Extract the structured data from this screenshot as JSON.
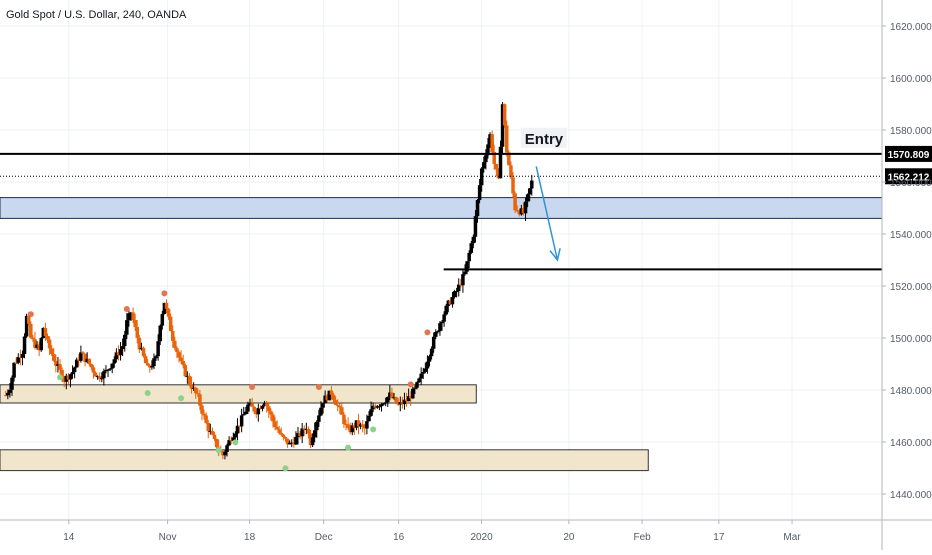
{
  "header": {
    "title": "Gold Spot / U.S. Dollar, 240, OANDA"
  },
  "colors": {
    "grid": "#eef1f5",
    "candle_up": "#000000",
    "candle_down": "#e8630a",
    "support_fill": "#f1e5cc",
    "support_stroke": "#333333",
    "zone_fill": "#c9d7ef",
    "zone_stroke": "#1c2d52",
    "arrow": "#2f95d0",
    "dot_high": "#e2774f",
    "dot_low": "#8fd18a",
    "axis_text": "#555b66"
  },
  "chart_data": {
    "type": "candlestick",
    "title": "Gold Spot / U.S. Dollar, 240, OANDA",
    "symbol": "XAUUSD",
    "timeframe": "240",
    "source": "OANDA",
    "ylim": [
      1430,
      1630
    ],
    "y_ticks": [
      1440,
      1460,
      1480,
      1500,
      1520,
      1540,
      1560,
      1580,
      1600,
      1620
    ],
    "y_tick_labels": [
      "1440.000",
      "1460.000",
      "1480.000",
      "1500.000",
      "1520.000",
      "1540.000",
      "1560.000",
      "1580.000",
      "1600.000",
      "1620.000"
    ],
    "x_ticks": [
      {
        "label": "14",
        "x": 0.078
      },
      {
        "label": "Nov",
        "x": 0.19
      },
      {
        "label": "18",
        "x": 0.283
      },
      {
        "label": "Dec",
        "x": 0.367
      },
      {
        "label": "16",
        "x": 0.452
      },
      {
        "label": "2020",
        "x": 0.546
      },
      {
        "label": "20",
        "x": 0.645
      },
      {
        "label": "Feb",
        "x": 0.728
      },
      {
        "label": "17",
        "x": 0.815
      },
      {
        "label": "Mar",
        "x": 0.898
      }
    ],
    "path": [
      [
        0,
        1478
      ],
      [
        0.6,
        1482
      ],
      [
        1,
        1490
      ],
      [
        2,
        1495
      ],
      [
        2.5,
        1508
      ],
      [
        3,
        1500
      ],
      [
        4,
        1495
      ],
      [
        4.5,
        1504
      ],
      [
        5,
        1498
      ],
      [
        6,
        1490
      ],
      [
        7,
        1484
      ],
      [
        8,
        1487
      ],
      [
        9,
        1494
      ],
      [
        10,
        1490
      ],
      [
        11,
        1485
      ],
      [
        12,
        1487
      ],
      [
        13,
        1492
      ],
      [
        14,
        1497
      ],
      [
        14.5,
        1506
      ],
      [
        15,
        1510
      ],
      [
        16,
        1497
      ],
      [
        17,
        1488
      ],
      [
        18,
        1492
      ],
      [
        18.5,
        1506
      ],
      [
        19,
        1514
      ],
      [
        20,
        1500
      ],
      [
        21,
        1490
      ],
      [
        22,
        1483
      ],
      [
        23,
        1477
      ],
      [
        24,
        1467
      ],
      [
        25,
        1460
      ],
      [
        26,
        1455
      ],
      [
        27,
        1462
      ],
      [
        28,
        1467
      ],
      [
        29,
        1474
      ],
      [
        30,
        1472
      ],
      [
        31,
        1476
      ],
      [
        32,
        1468
      ],
      [
        33,
        1462
      ],
      [
        34,
        1459
      ],
      [
        35,
        1462
      ],
      [
        36,
        1466
      ],
      [
        36.5,
        1460
      ],
      [
        37,
        1466
      ],
      [
        38,
        1476
      ],
      [
        39,
        1479
      ],
      [
        40,
        1472
      ],
      [
        41,
        1464
      ],
      [
        42,
        1467
      ],
      [
        43,
        1465
      ],
      [
        44,
        1474
      ],
      [
        45,
        1475
      ],
      [
        46,
        1478
      ],
      [
        47,
        1474
      ],
      [
        48,
        1476
      ],
      [
        49,
        1480
      ],
      [
        50,
        1487
      ],
      [
        51,
        1497
      ],
      [
        52,
        1506
      ],
      [
        53,
        1513
      ],
      [
        54,
        1518
      ],
      [
        55,
        1525
      ],
      [
        56,
        1540
      ],
      [
        57,
        1565
      ],
      [
        58,
        1578
      ],
      [
        58.5,
        1567
      ],
      [
        59,
        1560
      ],
      [
        59.5,
        1590
      ],
      [
        60,
        1572
      ],
      [
        61,
        1550
      ],
      [
        62,
        1548
      ],
      [
        63,
        1560
      ]
    ],
    "levels": [
      {
        "type": "resistance",
        "value": 1570.8,
        "label": "1570.809",
        "span": "full"
      },
      {
        "type": "current",
        "value": 1562.2,
        "label": "1562.212",
        "span": "full"
      },
      {
        "type": "target",
        "value": 1526.4,
        "label": "",
        "from": 0.503
      }
    ],
    "zones": [
      {
        "name": "supply-demand-zone",
        "top": 1554,
        "bottom": 1546,
        "from": 0,
        "to": 1,
        "style": "blue"
      },
      {
        "name": "support-zone-upper",
        "top": 1482,
        "bottom": 1475,
        "from": 0,
        "to": 0.54,
        "style": "beige"
      },
      {
        "name": "support-zone-lower",
        "top": 1457,
        "bottom": 1449,
        "from": 0,
        "to": 0.735,
        "style": "beige"
      }
    ],
    "annotations": [
      {
        "type": "label",
        "text": "Entry",
        "x": 0.595,
        "y": 1577
      },
      {
        "type": "arrow",
        "from": [
          0.608,
          1566
        ],
        "to": [
          0.632,
          1530
        ]
      }
    ],
    "signal_dots_high": [
      [
        3,
        1508
      ],
      [
        14.5,
        1510
      ],
      [
        19,
        1516
      ],
      [
        29.5,
        1480
      ],
      [
        37.5,
        1480
      ],
      [
        48.5,
        1481
      ],
      [
        50.5,
        1501
      ]
    ],
    "signal_dots_low": [
      [
        6.5,
        1486
      ],
      [
        17,
        1480
      ],
      [
        21,
        1478
      ],
      [
        25.5,
        1458
      ],
      [
        27.5,
        1461
      ],
      [
        33.5,
        1451
      ],
      [
        41,
        1459
      ],
      [
        44,
        1466
      ]
    ]
  }
}
